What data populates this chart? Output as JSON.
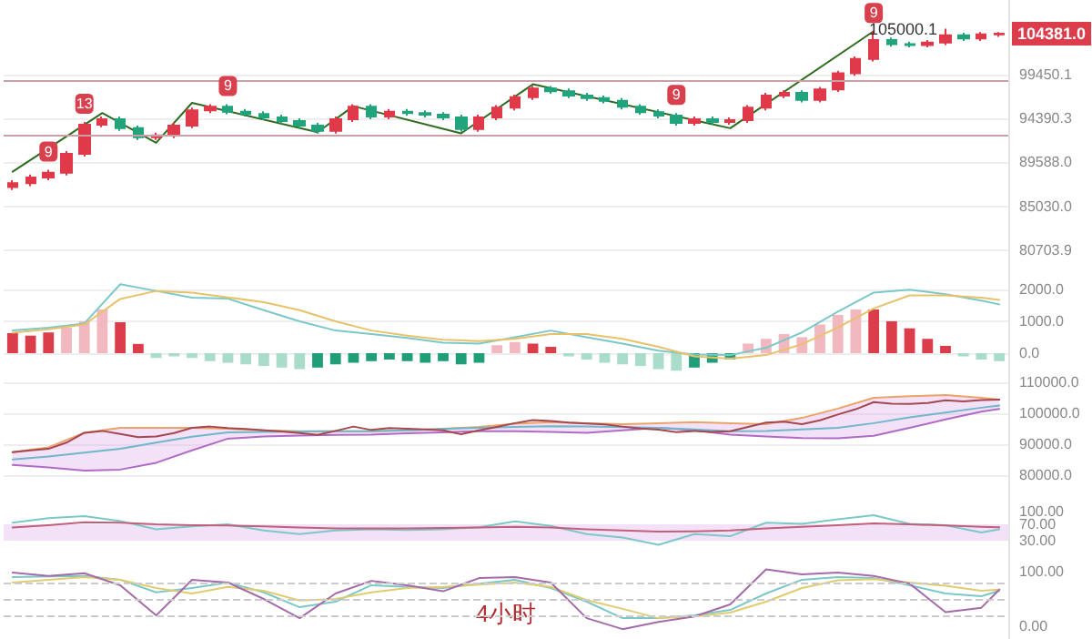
{
  "chart_data": [
    {
      "type": "candlestick",
      "categories": [
        null,
        null,
        null,
        null,
        null,
        null,
        null,
        null,
        null,
        null,
        null,
        null,
        null,
        null,
        null,
        null,
        null,
        null,
        null,
        null,
        null,
        null,
        null,
        null,
        null,
        null,
        null,
        null,
        null,
        null,
        null,
        null,
        null,
        null,
        null,
        null,
        null,
        null,
        null,
        null,
        null,
        null,
        null,
        null,
        null,
        null,
        null,
        null,
        null,
        null,
        null,
        null,
        null,
        null,
        null,
        null
      ],
      "ohlc": [
        [
          87000,
          87700,
          86700,
          87400
        ],
        [
          87400,
          88300,
          87100,
          88000
        ],
        [
          88000,
          88800,
          87700,
          88500
        ],
        [
          88500,
          90800,
          88200,
          90500
        ],
        [
          90500,
          94000,
          90200,
          93700
        ],
        [
          93700,
          94600,
          93400,
          94300
        ],
        [
          94300,
          94600,
          93000,
          93300
        ],
        [
          93300,
          93600,
          92000,
          92300
        ],
        [
          92300,
          92800,
          92000,
          92500
        ],
        [
          92500,
          93900,
          92200,
          93600
        ],
        [
          93600,
          95600,
          93300,
          95300
        ],
        [
          95300,
          96000,
          95000,
          95700
        ],
        [
          95700,
          96000,
          94850,
          95150
        ],
        [
          95150,
          95450,
          94600,
          94900
        ],
        [
          94900,
          95200,
          94200,
          94500
        ],
        [
          94500,
          94800,
          93800,
          94100
        ],
        [
          94100,
          94400,
          93300,
          93600
        ],
        [
          93600,
          93900,
          92700,
          93000
        ],
        [
          93000,
          94600,
          92700,
          94300
        ],
        [
          94300,
          96000,
          94000,
          95700
        ],
        [
          95700,
          96000,
          94300,
          94600
        ],
        [
          94600,
          95450,
          94300,
          95150
        ],
        [
          95150,
          95450,
          94700,
          95000
        ],
        [
          95000,
          95300,
          94500,
          94800
        ],
        [
          94800,
          95100,
          94200,
          94500
        ],
        [
          94500,
          94800,
          92900,
          93200
        ],
        [
          93200,
          94800,
          92900,
          94500
        ],
        [
          94500,
          95900,
          94200,
          95600
        ],
        [
          95600,
          97100,
          95300,
          96800
        ],
        [
          96800,
          98100,
          96500,
          97800
        ],
        [
          97800,
          98100,
          97200,
          97500
        ],
        [
          97500,
          97800,
          96700,
          97000
        ],
        [
          97000,
          97300,
          96400,
          96700
        ],
        [
          96700,
          97000,
          96100,
          96400
        ],
        [
          96400,
          96700,
          95400,
          95700
        ],
        [
          95700,
          96000,
          94800,
          95100
        ],
        [
          95100,
          95400,
          94400,
          94700
        ],
        [
          94700,
          95000,
          93600,
          93900
        ],
        [
          93900,
          94600,
          93600,
          94300
        ],
        [
          94300,
          94600,
          93700,
          94000
        ],
        [
          94000,
          94500,
          93700,
          94200
        ],
        [
          94200,
          95900,
          93900,
          95600
        ],
        [
          95600,
          97300,
          95300,
          97000
        ],
        [
          97000,
          97600,
          96700,
          97300
        ],
        [
          97300,
          97600,
          96200,
          96500
        ],
        [
          96500,
          98000,
          96200,
          97700
        ],
        [
          97700,
          99900,
          97400,
          99600
        ],
        [
          99600,
          101600,
          99300,
          101300
        ],
        [
          101300,
          104700,
          101000,
          103600
        ],
        [
          103600,
          103900,
          102800,
          103100
        ],
        [
          103100,
          103400,
          102700,
          103000
        ],
        [
          103000,
          103600,
          102700,
          103300
        ],
        [
          103300,
          105000.1,
          103000,
          104200
        ],
        [
          104200,
          104500,
          103500,
          103800
        ],
        [
          103800,
          104600,
          103500,
          104300
        ],
        [
          104300,
          104600,
          104000,
          104381
        ]
      ],
      "value_labels": [
        null,
        null,
        "9",
        null,
        "13",
        null,
        null,
        null,
        null,
        null,
        null,
        null,
        "9",
        null,
        null,
        null,
        null,
        null,
        null,
        null,
        null,
        null,
        null,
        null,
        null,
        null,
        null,
        null,
        null,
        null,
        null,
        null,
        null,
        null,
        null,
        null,
        null,
        "9",
        null,
        null,
        null,
        null,
        null,
        null,
        null,
        null,
        null,
        null,
        "9",
        null,
        null,
        null,
        "105000.1",
        null,
        null,
        null
      ],
      "series": [
        {
          "type": "line",
          "color": "#2e6b1f",
          "values": [
            88600,
            null,
            null,
            null,
            null,
            95000,
            null,
            null,
            91700,
            null,
            96150,
            null,
            null,
            null,
            null,
            null,
            null,
            92860,
            null,
            95780,
            null,
            null,
            null,
            null,
            null,
            92730,
            null,
            null,
            null,
            98300,
            null,
            null,
            null,
            null,
            null,
            null,
            null,
            null,
            null,
            null,
            93300,
            null,
            null,
            null,
            null,
            null,
            null,
            null,
            104700,
            null,
            null,
            null,
            null,
            null,
            null,
            null
          ]
        }
      ],
      "log": true,
      "ylim": [
        78550,
        108650
      ],
      "yticks": [
        99450.1,
        94390.3,
        {
          "value": 89588,
          "label": "89588.0"
        },
        {
          "value": 85030,
          "label": "85030.0"
        },
        80703.9
      ],
      "ref_lines": [
        {
          "axis": "y",
          "value": 98740,
          "color": "#c9a0a8"
        },
        {
          "axis": "y",
          "value": 92620,
          "color": "#c9a0a8"
        }
      ],
      "annotations": [
        "104381.0"
      ],
      "grid": "y",
      "tick_labels": "y"
    },
    {
      "type": "line",
      "categories": [
        null,
        null,
        null,
        null,
        null,
        null,
        null,
        null,
        null,
        null,
        null,
        null,
        null,
        null,
        null,
        null,
        null,
        null,
        null,
        null,
        null,
        null,
        null,
        null,
        null,
        null,
        null,
        null,
        null,
        null,
        null,
        null,
        null,
        null,
        null,
        null,
        null,
        null,
        null,
        null,
        null,
        null,
        null,
        null,
        null,
        null,
        null,
        null,
        null,
        null,
        null,
        null,
        null,
        null,
        null,
        null
      ],
      "series": [
        {
          "type": "bar",
          "values": [
            630,
            550,
            650,
            800,
            1000,
            1370,
            970,
            290,
            -150,
            -100,
            -150,
            -250,
            -300,
            -350,
            -400,
            -450,
            -500,
            -450,
            -350,
            -300,
            -250,
            -200,
            -250,
            -300,
            -250,
            -350,
            -300,
            250,
            350,
            300,
            200,
            -100,
            -200,
            -300,
            -350,
            -400,
            -500,
            -550,
            -450,
            -300,
            -200,
            300,
            450,
            600,
            500,
            900,
            1200,
            1370,
            1370,
            1000,
            780,
            450,
            230,
            -100,
            -200,
            -250
          ],
          "colors": [
            "#dc3d4b",
            "#dc3d4b",
            "#dc3d4b",
            "#f2b8bf",
            "#f2b8bf",
            "#f2b8bf",
            "#dc3d4b",
            "#dc3d4b",
            "#a9dcc9",
            "#a9dcc9",
            "#a9dcc9",
            "#a9dcc9",
            "#a9dcc9",
            "#a9dcc9",
            "#a9dcc9",
            "#a9dcc9",
            "#a9dcc9",
            "#1f9e78",
            "#1f9e78",
            "#1f9e78",
            "#1f9e78",
            "#1f9e78",
            "#1f9e78",
            "#1f9e78",
            "#1f9e78",
            "#1f9e78",
            "#1f9e78",
            "#f2b8bf",
            "#f2b8bf",
            "#dc3d4b",
            "#dc3d4b",
            "#a9dcc9",
            "#a9dcc9",
            "#a9dcc9",
            "#a9dcc9",
            "#a9dcc9",
            "#a9dcc9",
            "#a9dcc9",
            "#1f9e78",
            "#1f9e78",
            "#1f9e78",
            "#f2b8bf",
            "#f2b8bf",
            "#f2b8bf",
            "#f2b8bf",
            "#f2b8bf",
            "#f2b8bf",
            "#f2b8bf",
            "#dc3d4b",
            "#dc3d4b",
            "#dc3d4b",
            "#dc3d4b",
            "#dc3d4b",
            "#a9dcc9",
            "#a9dcc9",
            "#a9dcc9"
          ]
        },
        {
          "color": "#7cc8c8",
          "values": [
            710,
            null,
            800,
            null,
            930,
            null,
            2160,
            null,
            1950,
            null,
            1740,
            null,
            1710,
            null,
            1350,
            null,
            1000,
            null,
            710,
            null,
            600,
            null,
            480,
            null,
            330,
            null,
            300,
            null,
            500,
            null,
            710,
            null,
            500,
            null,
            300,
            null,
            80,
            null,
            -40,
            null,
            -60,
            null,
            170,
            null,
            650,
            null,
            1300,
            null,
            1900,
            null,
            1990,
            null,
            1850,
            null,
            1650,
            1530
          ]
        },
        {
          "color": "#e8c26a",
          "values": [
            640,
            null,
            750,
            null,
            900,
            null,
            1700,
            null,
            1950,
            null,
            1900,
            null,
            1750,
            null,
            1600,
            null,
            1350,
            null,
            1000,
            null,
            710,
            null,
            550,
            null,
            420,
            null,
            380,
            null,
            450,
            null,
            600,
            null,
            600,
            null,
            450,
            null,
            200,
            null,
            -100,
            null,
            -170,
            null,
            -60,
            null,
            280,
            null,
            800,
            null,
            1400,
            null,
            1810,
            null,
            1810,
            null,
            1740,
            1670
          ]
        }
      ],
      "ylim": [
        -570,
        2510
      ],
      "yticks": [
        {
          "value": 2000,
          "label": "2000.0"
        },
        {
          "value": 1000,
          "label": "1000.0"
        },
        {
          "value": 0,
          "label": "0.0"
        }
      ],
      "grid": "y",
      "tick_labels": "y"
    },
    {
      "type": "line",
      "categories": [
        null,
        null,
        null,
        null,
        null,
        null,
        null,
        null,
        null,
        null,
        null,
        null,
        null,
        null,
        null,
        null,
        null,
        null,
        null,
        null,
        null,
        null,
        null,
        null,
        null,
        null,
        null,
        null,
        null,
        null,
        null,
        null,
        null,
        null,
        null,
        null,
        null,
        null,
        null,
        null,
        null,
        null,
        null,
        null,
        null,
        null,
        null,
        null,
        null,
        null,
        null,
        null,
        null,
        null,
        null,
        null
      ],
      "series": [
        {
          "color": "#eba36a",
          "values": [
            87400,
            null,
            89000,
            null,
            93700,
            null,
            95300,
            null,
            95300,
            null,
            95300,
            null,
            95000,
            null,
            94500,
            null,
            94200,
            null,
            94200,
            null,
            94200,
            null,
            94500,
            null,
            95000,
            null,
            95600,
            null,
            96600,
            null,
            97100,
            null,
            96800,
            null,
            96500,
            null,
            96800,
            null,
            97100,
            null,
            96800,
            null,
            96500,
            null,
            98500,
            null,
            101500,
            null,
            105000,
            null,
            105500,
            null,
            105900,
            null,
            105000,
            104400
          ]
        },
        {
          "color": "#b06cc4",
          "values": [
            83300,
            null,
            82500,
            null,
            81500,
            null,
            81800,
            null,
            84000,
            null,
            88000,
            null,
            91800,
            null,
            92500,
            null,
            92800,
            null,
            93000,
            null,
            93100,
            null,
            93500,
            null,
            93800,
            null,
            94200,
            null,
            94200,
            null,
            94000,
            null,
            93700,
            null,
            94500,
            null,
            95300,
            null,
            94500,
            null,
            93100,
            null,
            92500,
            null,
            92000,
            null,
            91900,
            null,
            92700,
            null,
            95300,
            null,
            98000,
            null,
            100500,
            101400
          ]
        },
        {
          "color": "#6fb7c9",
          "values": [
            85100,
            null,
            86000,
            null,
            87300,
            null,
            88500,
            null,
            90500,
            null,
            92400,
            null,
            93800,
            null,
            94000,
            null,
            94100,
            null,
            94200,
            null,
            94200,
            null,
            94500,
            null,
            94900,
            null,
            95300,
            null,
            95600,
            null,
            95800,
            null,
            95700,
            null,
            95500,
            null,
            95300,
            null,
            94800,
            null,
            94200,
            null,
            94300,
            null,
            94800,
            null,
            95300,
            null,
            96800,
            null,
            98700,
            null,
            100200,
            null,
            101800,
            102500
          ],
          "upper": [
            87350,
            null,
            89000,
            null,
            93700,
            null,
            95300,
            null,
            95300,
            null,
            95300,
            null,
            95000,
            null,
            94500,
            null,
            94200,
            null,
            94200,
            null,
            94200,
            null,
            94500,
            null,
            95000,
            null,
            95600,
            null,
            96600,
            null,
            97100,
            null,
            96800,
            null,
            96500,
            null,
            96800,
            null,
            97100,
            null,
            96800,
            null,
            96500,
            null,
            98500,
            null,
            101500,
            null,
            105000,
            null,
            105500,
            null,
            105900,
            null,
            105000,
            104350
          ],
          "lower": [
            83300,
            null,
            82500,
            null,
            81500,
            null,
            81800,
            null,
            84000,
            null,
            88000,
            null,
            91800,
            null,
            92500,
            null,
            92800,
            null,
            93000,
            null,
            93100,
            null,
            93500,
            null,
            93800,
            null,
            94200,
            null,
            94200,
            null,
            94000,
            null,
            93700,
            null,
            94500,
            null,
            95300,
            null,
            94500,
            null,
            93100,
            null,
            92500,
            null,
            92000,
            null,
            91900,
            null,
            92700,
            null,
            95300,
            null,
            98000,
            null,
            100500,
            101400
          ]
        },
        {
          "color": "#a6474f",
          "values": [
            87400,
            88000,
            88500,
            90500,
            93700,
            94300,
            93300,
            92300,
            92500,
            93600,
            95300,
            95700,
            95200,
            94900,
            94500,
            94100,
            93600,
            93000,
            94300,
            95700,
            94600,
            95200,
            95000,
            94800,
            94500,
            93200,
            94500,
            95600,
            96800,
            97800,
            97500,
            97000,
            96700,
            96400,
            95700,
            95100,
            94700,
            93900,
            94300,
            94000,
            94200,
            95600,
            97000,
            97300,
            96500,
            97700,
            99600,
            101300,
            103600,
            103100,
            103000,
            103300,
            104200,
            103800,
            104300,
            104400
          ]
        }
      ],
      "ylim": [
        73530,
        113530
      ],
      "yticks": [
        {
          "value": 110000,
          "label": "110000.0"
        },
        {
          "value": 100000,
          "label": "100000.0"
        },
        {
          "value": 90000,
          "label": "90000.0"
        },
        {
          "value": 80000,
          "label": "80000.0"
        }
      ],
      "grid": "y",
      "tick_labels": "y"
    },
    {
      "type": "line",
      "categories": [
        null,
        null,
        null,
        null,
        null,
        null,
        null,
        null,
        null,
        null,
        null,
        null,
        null,
        null,
        null,
        null,
        null,
        null,
        null,
        null,
        null,
        null,
        null,
        null,
        null,
        null,
        null,
        null,
        null,
        null,
        null,
        null,
        null,
        null,
        null,
        null,
        null,
        null,
        null,
        null,
        null,
        null,
        null,
        null,
        null,
        null,
        null,
        null,
        null,
        null,
        null,
        null,
        null,
        null,
        null,
        null
      ],
      "series": [
        {
          "color": "#7cc8c8",
          "values": [
            74,
            null,
            85,
            null,
            90,
            null,
            78,
            null,
            58,
            null,
            65,
            null,
            70,
            null,
            55,
            null,
            46,
            null,
            55,
            null,
            58,
            null,
            56,
            null,
            58,
            null,
            63,
            null,
            77,
            null,
            66,
            null,
            46,
            null,
            38,
            null,
            20,
            null,
            46,
            null,
            41,
            null,
            74,
            null,
            71,
            null,
            82,
            null,
            92,
            null,
            71,
            null,
            68,
            null,
            50,
            58
          ]
        },
        {
          "color": "#c0607a",
          "values": [
            62,
            null,
            68,
            null,
            75,
            null,
            74,
            null,
            70,
            null,
            68,
            null,
            67,
            null,
            65,
            null,
            62,
            null,
            60,
            null,
            60,
            null,
            60,
            null,
            61,
            null,
            62,
            null,
            64,
            null,
            62,
            null,
            58,
            null,
            55,
            null,
            52,
            null,
            53,
            null,
            55,
            null,
            60,
            null,
            64,
            null,
            68,
            null,
            72,
            null,
            70,
            null,
            67,
            null,
            64,
            63
          ]
        }
      ],
      "bands": [
        {
          "axis": "y",
          "from": 30,
          "to": 70,
          "color": "#efd9f5"
        }
      ],
      "ylim": [
        -1,
        141
      ],
      "yticks": [
        {
          "value": 100,
          "label": "100.00"
        },
        {
          "value": 70,
          "label": "70.00"
        },
        {
          "value": 30,
          "label": "30.00"
        }
      ],
      "tick_labels": "y"
    },
    {
      "type": "line",
      "categories": [
        null,
        null,
        null,
        null,
        null,
        null,
        null,
        null,
        null,
        null,
        null,
        null,
        null,
        null,
        null,
        null,
        null,
        null,
        null,
        null,
        null,
        null,
        null,
        null,
        null,
        null,
        null,
        null,
        null,
        null,
        null,
        null,
        null,
        null,
        null,
        null,
        null,
        null,
        null,
        null,
        null,
        null,
        null,
        null,
        null,
        null,
        null,
        null,
        null,
        null,
        null,
        null,
        null,
        null,
        null,
        null
      ],
      "series": [
        {
          "color": "#7cc8c8",
          "values": [
            90,
            null,
            91,
            null,
            92,
            null,
            85,
            null,
            62,
            null,
            70,
            null,
            80,
            null,
            62,
            null,
            35,
            null,
            45,
            null,
            75,
            null,
            72,
            null,
            70,
            null,
            78,
            null,
            85,
            null,
            70,
            null,
            45,
            null,
            15,
            null,
            15,
            null,
            20,
            null,
            30,
            null,
            60,
            null,
            85,
            null,
            90,
            null,
            88,
            null,
            75,
            null,
            60,
            null,
            55,
            65
          ]
        },
        {
          "color": "#e0cc70",
          "values": [
            80,
            null,
            85,
            null,
            90,
            null,
            85,
            null,
            70,
            null,
            60,
            null,
            72,
            null,
            65,
            null,
            47,
            null,
            50,
            null,
            62,
            null,
            70,
            null,
            72,
            null,
            76,
            null,
            80,
            null,
            72,
            null,
            48,
            null,
            32,
            null,
            15,
            null,
            18,
            null,
            25,
            null,
            45,
            null,
            70,
            null,
            84,
            null,
            86,
            null,
            80,
            null,
            74,
            null,
            65,
            67
          ]
        },
        {
          "color": "#a56aa8",
          "values": [
            98,
            null,
            92,
            null,
            97,
            null,
            75,
            null,
            20,
            null,
            85,
            null,
            80,
            null,
            50,
            null,
            15,
            null,
            60,
            null,
            83,
            null,
            75,
            null,
            64,
            null,
            88,
            null,
            90,
            null,
            80,
            null,
            15,
            null,
            -5,
            null,
            8,
            null,
            18,
            null,
            40,
            null,
            104,
            null,
            95,
            null,
            98,
            null,
            92,
            null,
            78,
            null,
            26,
            null,
            34,
            67
          ]
        }
      ],
      "ref_lines": [
        {
          "axis": "y",
          "value": 80,
          "color": "#cccccc",
          "line_style": "dashed"
        },
        {
          "axis": "y",
          "value": 50,
          "color": "#cccccc",
          "line_style": "dashed"
        },
        {
          "axis": "y",
          "value": 20,
          "color": "#cccccc",
          "line_style": "dashed"
        }
      ],
      "annotations": [
        "4小时"
      ],
      "ylim": [
        -23,
        133
      ],
      "yticks": [
        {
          "value": 100,
          "label": "100.00"
        },
        {
          "value": 0,
          "label": "0.00"
        }
      ],
      "tick_labels": "y"
    }
  ]
}
